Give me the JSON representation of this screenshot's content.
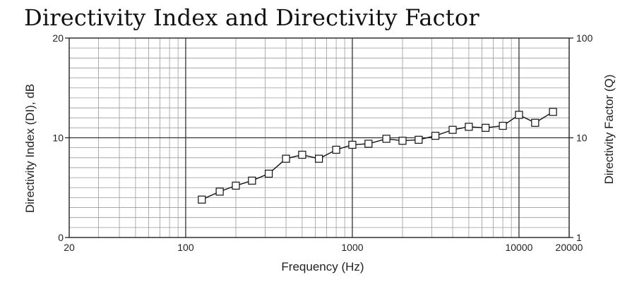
{
  "chart_data": {
    "type": "line",
    "title": "Directivity Index and Directivity Factor",
    "xlabel": "Frequency (Hz)",
    "ylabel": "Directivity Index (DI), dB",
    "y2label": "Directivity Factor (Q)",
    "x_scale": "log",
    "y2_scale": "log",
    "xlim": [
      20,
      20000
    ],
    "ylim": [
      0,
      20
    ],
    "y2lim": [
      1,
      100
    ],
    "grid": true,
    "x_ticks": [
      20,
      100,
      1000,
      10000,
      20000
    ],
    "x_tick_labels": [
      "20",
      "100",
      "1000",
      "10000",
      "20000"
    ],
    "y_ticks": [
      0,
      10,
      20
    ],
    "y_tick_labels": [
      "0",
      "10",
      "20"
    ],
    "y2_ticks": [
      1,
      10,
      100
    ],
    "y2_tick_labels": [
      "1",
      "10",
      "100"
    ],
    "marker": "open-square",
    "series": [
      {
        "x": [
          125,
          160,
          200,
          250,
          315,
          400,
          500,
          630,
          800,
          1000,
          1250,
          1600,
          2000,
          2500,
          3150,
          4000,
          5000,
          6300,
          8000,
          10000,
          12500,
          16000
        ],
        "values": [
          3.8,
          4.6,
          5.2,
          5.7,
          6.4,
          7.9,
          8.3,
          7.9,
          8.8,
          9.3,
          9.4,
          9.9,
          9.7,
          9.8,
          10.2,
          10.8,
          11.1,
          11.0,
          11.2,
          12.3,
          11.5,
          12.6
        ]
      }
    ]
  }
}
